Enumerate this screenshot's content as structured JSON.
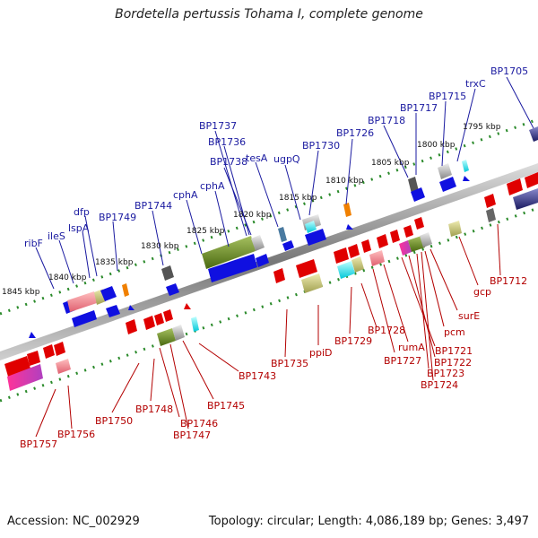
{
  "title": "Bordetella pertussis Tohama I, complete genome",
  "footer": {
    "accession": "Accession: NC_002929",
    "summary": "Topology: circular; Length: 4,086,189 bp; Genes: 3,497"
  },
  "kbp_ticks": [
    "1845 kbp",
    "1840 kbp",
    "1835 kbp",
    "1830 kbp",
    "1825 kbp",
    "1820 kbp",
    "1815 kbp",
    "1810 kbp",
    "1805 kbp",
    "1800 kbp",
    "1795 kbp"
  ],
  "top_labels": [
    "ribF",
    "ileS",
    "lspA",
    "dfp",
    "BP1749",
    "BP1744",
    "cphA",
    "cphA",
    "BP1737",
    "BP1736",
    "BP1738",
    "tesA",
    "ugpQ",
    "BP1730",
    "BP1726",
    "BP1718",
    "BP1717",
    "BP1715",
    "trxC",
    "BP1705"
  ],
  "bottom_labels": [
    "BP1757",
    "BP1756",
    "BP1750",
    "BP1748",
    "BP1746",
    "BP1747",
    "BP1745",
    "BP1743",
    "BP1735",
    "ppiD",
    "BP1729",
    "BP1728",
    "BP1727",
    "rumA",
    "BP1721",
    "BP1722",
    "BP1723",
    "BP1724",
    "pcm",
    "surE",
    "gcp",
    "BP1712"
  ],
  "colors": {
    "forward": "#1010e0",
    "reverse": "#e00000",
    "top_label": "#1a1aa0",
    "bottom_label": "#b30000",
    "track_dots": "#2a8a2a",
    "backbone": "#888888"
  }
}
